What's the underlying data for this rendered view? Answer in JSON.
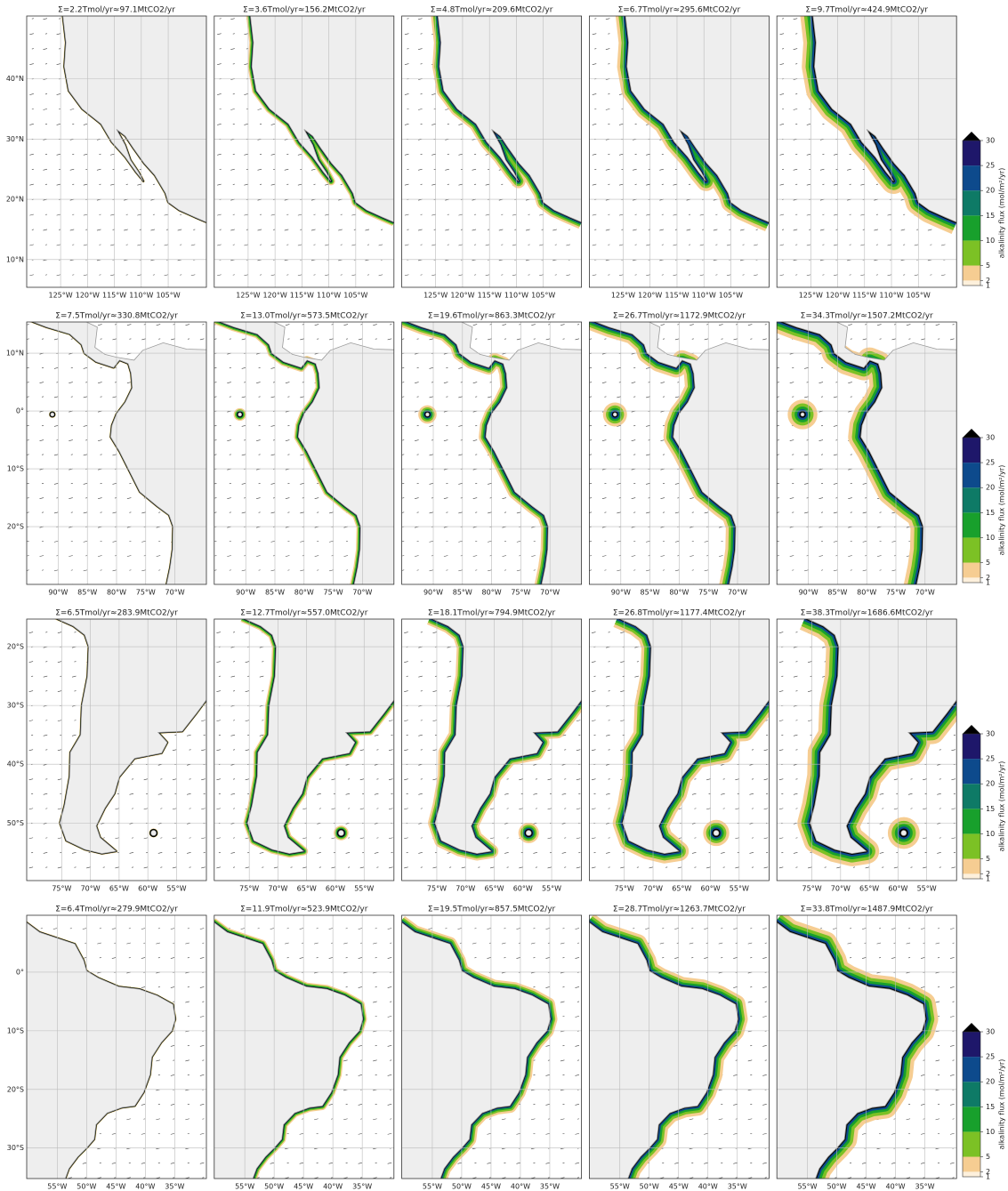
{
  "rows": [
    {
      "titles": [
        "Σ=2.2Tmol/yr≈97.1MtCO2/yr",
        "Σ=3.6Tmol/yr≈156.2MtCO2/yr",
        "Σ=4.8Tmol/yr≈209.6MtCO2/yr",
        "Σ=6.7Tmol/yr≈295.6MtCO2/yr",
        "Σ=9.7Tmol/yr≈424.9MtCO2/yr"
      ],
      "xlim": [
        -131.3,
        -97.9
      ],
      "ylim": [
        5.4,
        50.4
      ],
      "lon_ticks": [
        {
          "value": -125,
          "label": "125°W"
        },
        {
          "value": -120,
          "label": "120°W"
        },
        {
          "value": -115,
          "label": "115°W"
        },
        {
          "value": -110,
          "label": "110°W"
        },
        {
          "value": -105,
          "label": "105°W"
        }
      ],
      "lat_ticks": [
        {
          "value": 40,
          "label": "40°N"
        },
        {
          "value": 30,
          "label": "30°N"
        },
        {
          "value": 20,
          "label": "20°N"
        },
        {
          "value": 10,
          "label": "10°N"
        }
      ]
    },
    {
      "titles": [
        "Σ=7.5Tmol/yr≈330.8MtCO2/yr",
        "Σ=13.0Tmol/yr≈573.5MtCO2/yr",
        "Σ=19.6Tmol/yr≈863.3MtCO2/yr",
        "Σ=26.7Tmol/yr≈1172.9MtCO2/yr",
        "Σ=34.3Tmol/yr≈1507.2MtCO2/yr"
      ],
      "xlim": [
        -95.4,
        -64.6
      ],
      "ylim": [
        -30.0,
        15.4
      ],
      "lon_ticks": [
        {
          "value": -90,
          "label": "90°W"
        },
        {
          "value": -85,
          "label": "85°W"
        },
        {
          "value": -80,
          "label": "80°W"
        },
        {
          "value": -75,
          "label": "75°W"
        },
        {
          "value": -70,
          "label": "70°W"
        }
      ],
      "lat_ticks": [
        {
          "value": 10,
          "label": "10°N"
        },
        {
          "value": 0,
          "label": "0°"
        },
        {
          "value": -10,
          "label": "10°S"
        },
        {
          "value": -20,
          "label": "20°S"
        }
      ]
    },
    {
      "titles": [
        "Σ=6.5Tmol/yr≈283.9MtCO2/yr",
        "Σ=12.7Tmol/yr≈557.0MtCO2/yr",
        "Σ=18.1Tmol/yr≈794.9MtCO2/yr",
        "Σ=26.8Tmol/yr≈1177.4MtCO2/yr",
        "Σ=38.3Tmol/yr≈1686.6MtCO2/yr"
      ],
      "xlim": [
        -81.1,
        -49.8
      ],
      "ylim": [
        -59.8,
        -15.3
      ],
      "lon_ticks": [
        {
          "value": -75,
          "label": "75°W"
        },
        {
          "value": -70,
          "label": "70°W"
        },
        {
          "value": -65,
          "label": "65°W"
        },
        {
          "value": -60,
          "label": "60°W"
        },
        {
          "value": -55,
          "label": "55°W"
        }
      ],
      "lat_ticks": [
        {
          "value": -20,
          "label": "20°S"
        },
        {
          "value": -30,
          "label": "30°S"
        },
        {
          "value": -40,
          "label": "40°S"
        },
        {
          "value": -50,
          "label": "50°S"
        }
      ]
    },
    {
      "titles": [
        "Σ=6.4Tmol/yr≈279.9MtCO2/yr",
        "Σ=11.9Tmol/yr≈523.9MtCO2/yr",
        "Σ=19.5Tmol/yr≈857.5MtCO2/yr",
        "Σ=28.7Tmol/yr≈1263.7MtCO2/yr",
        "Σ=33.8Tmol/yr≈1487.9MtCO2/yr"
      ],
      "xlim": [
        -60.2,
        -29.6
      ],
      "ylim": [
        -35.2,
        9.7
      ],
      "lon_ticks": [
        {
          "value": -55,
          "label": "55°W"
        },
        {
          "value": -50,
          "label": "50°W"
        },
        {
          "value": -45,
          "label": "45°W"
        },
        {
          "value": -40,
          "label": "40°W"
        },
        {
          "value": -35,
          "label": "35°W"
        }
      ],
      "lat_ticks": [
        {
          "value": 0,
          "label": "0°"
        },
        {
          "value": -10,
          "label": "10°S"
        },
        {
          "value": -20,
          "label": "20°S"
        },
        {
          "value": -30,
          "label": "30°S"
        }
      ]
    }
  ],
  "colorbar": {
    "label": "alkalinity flux (mol/m²/yr)",
    "ticks": [
      1,
      2,
      5,
      10,
      15,
      20,
      25,
      30
    ],
    "colors": [
      "#fdf0dc",
      "#f6cd92",
      "#7cc125",
      "#18a02c",
      "#0e7a66",
      "#0d4a8c",
      "#1e176a"
    ],
    "extend_color": "#000000"
  }
}
